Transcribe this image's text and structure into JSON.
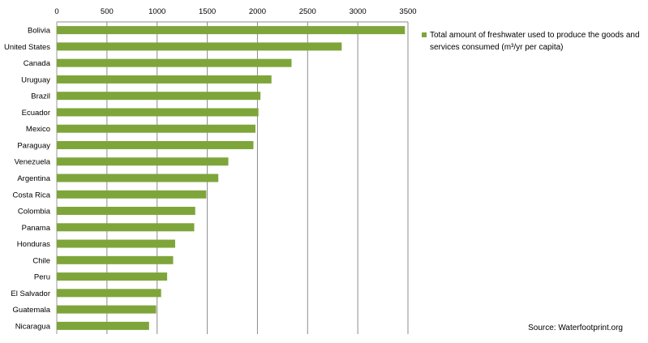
{
  "chart_data": {
    "type": "bar",
    "orientation": "horizontal",
    "categories": [
      "Bolivia",
      "United States",
      "Canada",
      "Uruguay",
      "Brazil",
      "Ecuador",
      "Mexico",
      "Paraguay",
      "Venezuela",
      "Argentina",
      "Costa Rica",
      "Colombia",
      "Panama",
      "Honduras",
      "Chile",
      "Peru",
      "El Salvador",
      "Guatemala",
      "Nicaragua"
    ],
    "series": [
      {
        "name": "Total amount of freshwater used to produce the goods and services consumed (m³/yr per capita)",
        "values": [
          3470,
          2840,
          2340,
          2140,
          2030,
          2010,
          1980,
          1960,
          1710,
          1610,
          1490,
          1380,
          1370,
          1180,
          1160,
          1100,
          1040,
          990,
          920
        ]
      }
    ],
    "xlim": [
      0,
      3500
    ],
    "xticks": [
      0,
      500,
      1000,
      1500,
      2000,
      2500,
      3000,
      3500
    ],
    "x_axis_position": "top",
    "grid": "vertical",
    "legend_placement": "right",
    "bar_color": "#7ea53a"
  },
  "source_text": "Source: Waterfootprint.org"
}
